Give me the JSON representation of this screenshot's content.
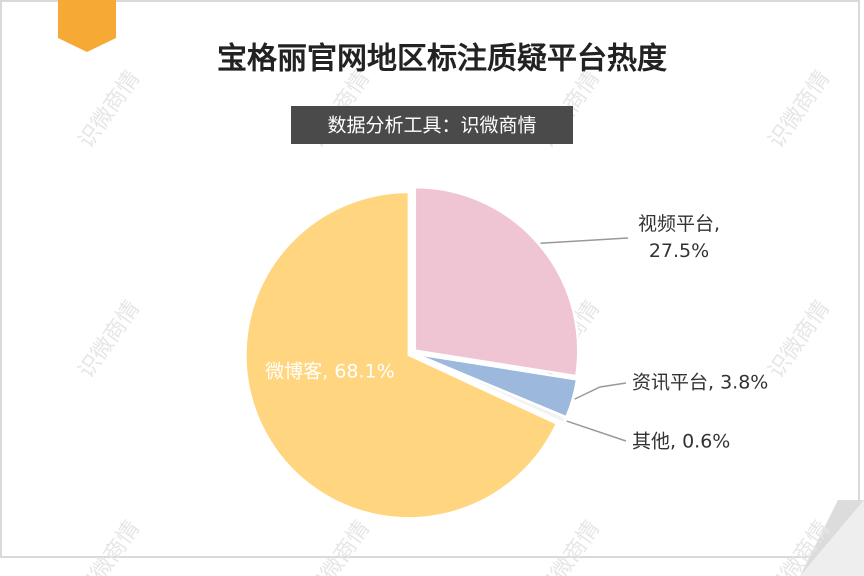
{
  "chart_data": {
    "type": "pie",
    "title": "宝格丽官网地区标注质疑平台热度",
    "subtitle": "数据分析工具：识微商情",
    "values": [
      27.5,
      3.8,
      0.6,
      68.1
    ],
    "value_labels": [
      "视频平台, 27.5%",
      "资讯平台, 3.8%",
      "其他, 0.6%",
      "微博客, 68.1%"
    ],
    "colors": [
      "#efc5d3",
      "#9cb8dd",
      "#f3f3f3",
      "#ffd67f"
    ],
    "watermark": "识微商情"
  }
}
